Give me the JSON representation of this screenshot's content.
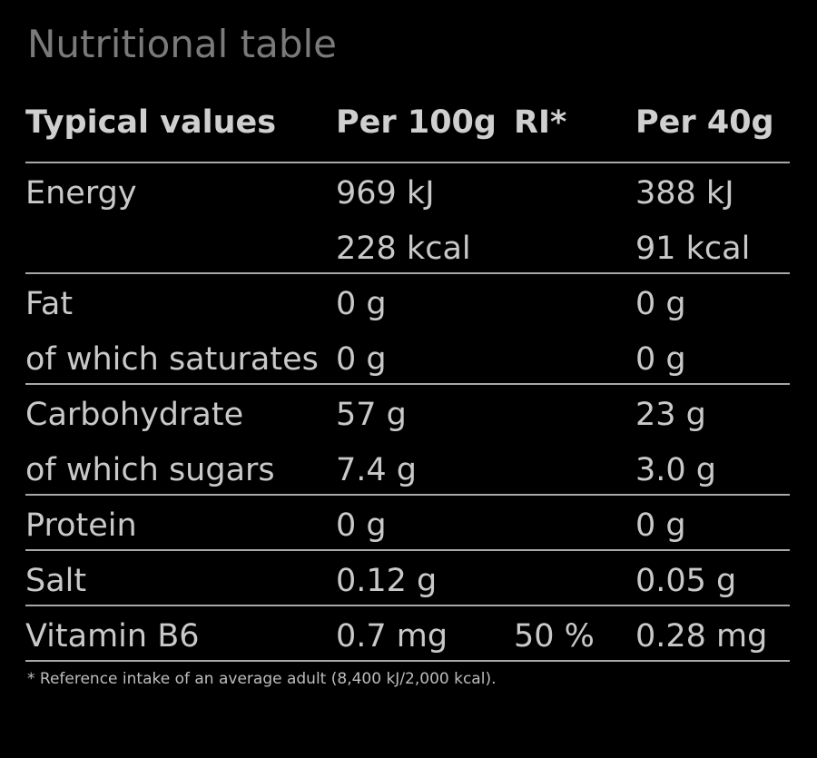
{
  "title": "Nutritional table",
  "table": {
    "header": [
      "Typical values",
      "Per 100g",
      "RI*",
      "Per 40g"
    ],
    "groups": [
      [
        {
          "label": "Energy",
          "per100": "969 kJ",
          "per40": "388 kJ"
        },
        {
          "per100": "228 kcal",
          "per40": "91 kcal"
        }
      ],
      [
        {
          "label": "Fat",
          "per100": "0 g",
          "per40": "0 g"
        },
        {
          "label": "of which saturates",
          "per100": "0 g",
          "per40": "0 g"
        }
      ],
      [
        {
          "label": "Carbohydrate",
          "per100": "57 g",
          "per40": "23 g"
        },
        {
          "label": "of which sugars",
          "per100": "7.4 g",
          "per40": "3.0 g"
        }
      ],
      [
        {
          "label": "Protein",
          "per100": "0 g",
          "per40": "0 g"
        }
      ],
      [
        {
          "label": "Salt",
          "per100": "0.12 g",
          "per40": "0.05 g"
        }
      ],
      [
        {
          "label": "Vitamin B6",
          "per100": "0.7 mg",
          "ri": "50 %",
          "per40": "0.28 mg"
        }
      ]
    ]
  },
  "footnote": "* Reference intake of an average adult (8,400 kJ/2,000 kcal)."
}
